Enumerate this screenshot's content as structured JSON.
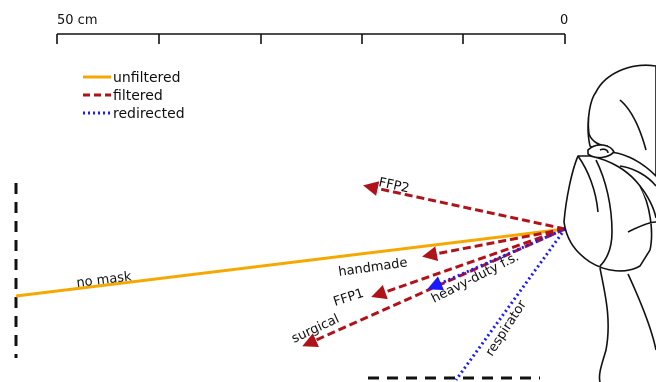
{
  "scale": {
    "left_label": "50 cm",
    "right_label": "0"
  },
  "legend": [
    {
      "label": "unfiltered",
      "style": "solid",
      "color": "#f5a800"
    },
    {
      "label": "filtered",
      "style": "dashed",
      "color": "#b0121a"
    },
    {
      "label": "redirected",
      "style": "dotted",
      "color": "#1a1aff"
    }
  ],
  "flows": {
    "no_mask": {
      "label": "no mask",
      "type": "unfiltered"
    },
    "ffp2": {
      "label": "FFP2",
      "type": "filtered"
    },
    "handmade": {
      "label": "handmade",
      "type": "filtered"
    },
    "ffp1": {
      "label": "FFP1",
      "type": "filtered"
    },
    "surgical": {
      "label": "surgical",
      "type": "filtered"
    },
    "heavy_duty": {
      "label": "heavy-duty f.s.",
      "type": "redirected"
    },
    "respirator": {
      "label": "respirator",
      "type": "redirected"
    }
  },
  "colors": {
    "unfiltered": "#f5a800",
    "filtered": "#b0121a",
    "redirected": "#1a1aff"
  }
}
